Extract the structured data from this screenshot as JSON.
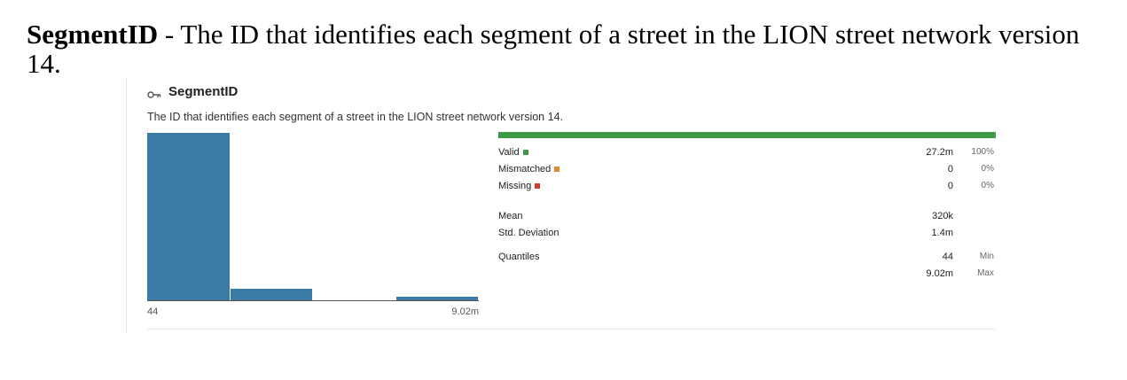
{
  "document": {
    "heading_bold": "SegmentID",
    "heading_rest": " - The ID that identifies each segment of a street in the LION street network version 14."
  },
  "column": {
    "icon": "key-icon",
    "name": "SegmentID",
    "description": "The ID that identifies each segment of a street in the LION street network version 14."
  },
  "histogram": {
    "min_label": "44",
    "max_label": "9.02m",
    "bars": [
      1.0,
      0.07,
      0.0,
      0.02
    ],
    "color": "#3a7aa5"
  },
  "quality": {
    "valid_fraction": 1.0,
    "rows": [
      {
        "label": "Valid",
        "value": "27.2m",
        "percent": "100%",
        "color": "#3f9a48"
      },
      {
        "label": "Mismatched",
        "value": "0",
        "percent": "0%",
        "color": "#e08a2c"
      },
      {
        "label": "Missing",
        "value": "0",
        "percent": "0%",
        "color": "#d23a2f"
      }
    ]
  },
  "stats": {
    "mean_label": "Mean",
    "mean_value": "320k",
    "std_label": "Std. Deviation",
    "std_value": "1.4m",
    "quantiles_label": "Quantiles",
    "q_min_value": "44",
    "q_min_label": "Min",
    "q_max_value": "9.02m",
    "q_max_label": "Max"
  }
}
